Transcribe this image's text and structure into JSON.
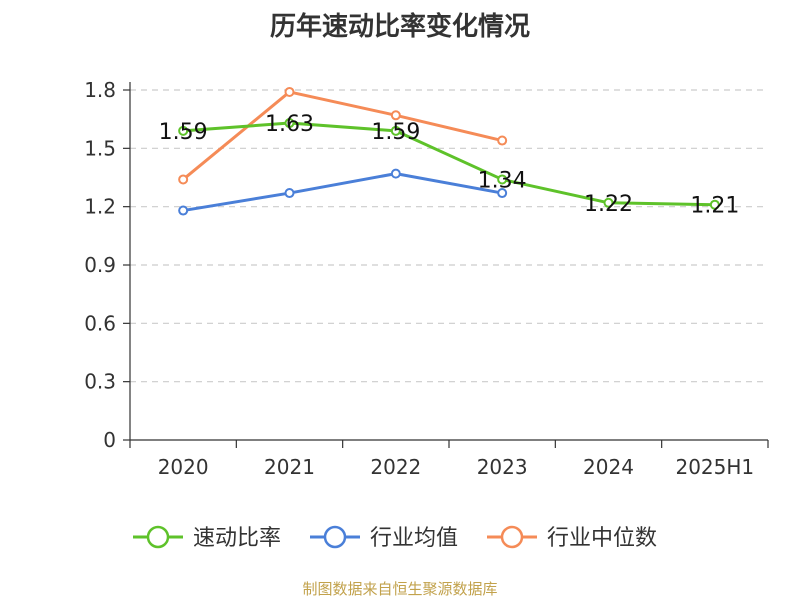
{
  "chart_data": {
    "type": "line",
    "title": "历年速动比率变化情况",
    "categories": [
      "2020",
      "2021",
      "2022",
      "2023",
      "2024",
      "2025H1"
    ],
    "ylim": [
      0,
      1.8
    ],
    "yticks": [
      "0",
      "0.3",
      "0.6",
      "0.9",
      "1.2",
      "1.5",
      "1.8"
    ],
    "grid": true,
    "legend_position": "bottom",
    "series": [
      {
        "name": "速动比率",
        "color": "#5ec22a",
        "values": [
          1.59,
          1.63,
          1.59,
          1.34,
          1.22,
          1.21
        ],
        "labels": [
          "1.59",
          "1.63",
          "1.59",
          "1.34",
          "1.22",
          "1.21"
        ]
      },
      {
        "name": "行业均值",
        "color": "#4a7fd8",
        "values": [
          1.18,
          1.27,
          1.37,
          1.27,
          null,
          null
        ]
      },
      {
        "name": "行业中位数",
        "color": "#f58b57",
        "values": [
          1.34,
          1.79,
          1.67,
          1.54,
          null,
          null
        ]
      }
    ]
  },
  "source_text": "制图数据来自恒生聚源数据库"
}
